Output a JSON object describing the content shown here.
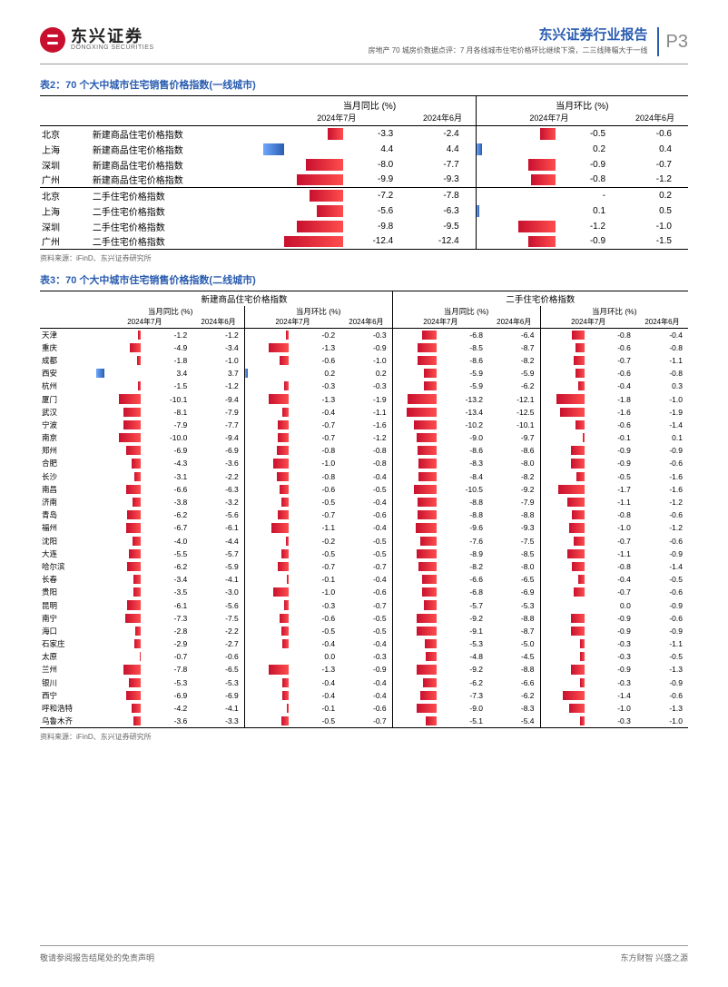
{
  "header": {
    "logo_cn": "东兴证券",
    "logo_en": "DONGXING SECURITIES",
    "title": "东兴证券行业报告",
    "subtitle": "房地产 70 城房价数据点评：7 月各线城市住宅价格环比继续下滑，二三线降幅大于一线",
    "page": "P3"
  },
  "colors": {
    "neg_bar_from": "#ff4d4d",
    "neg_bar_to": "#c8102e",
    "pos_bar_from": "#6ea8ff",
    "pos_bar_to": "#2a5db0",
    "title_blue": "#2a5db0",
    "rule": "#999999"
  },
  "table2": {
    "title": "表2：70 个大中城市住宅销售价格指数(一线城市)",
    "group_headers": [
      "当月同比 (%)",
      "当月环比 (%)"
    ],
    "sub_headers": [
      "2024年7月",
      "2024年6月",
      "2024年7月",
      "2024年6月"
    ],
    "bar_scale_yoy": 13.0,
    "bar_scale_mom": 2.0,
    "rows": [
      {
        "city": "北京",
        "metric": "新建商品住宅价格指数",
        "yoy7": -3.3,
        "yoy6": -2.4,
        "mom7": -0.5,
        "mom6": -0.6
      },
      {
        "city": "上海",
        "metric": "新建商品住宅价格指数",
        "yoy7": 4.4,
        "yoy6": 4.4,
        "mom7": 0.2,
        "mom6": 0.4
      },
      {
        "city": "深圳",
        "metric": "新建商品住宅价格指数",
        "yoy7": -8.0,
        "yoy6": -7.7,
        "mom7": -0.9,
        "mom6": -0.7
      },
      {
        "city": "广州",
        "metric": "新建商品住宅价格指数",
        "yoy7": -9.9,
        "yoy6": -9.3,
        "mom7": -0.8,
        "mom6": -1.2
      },
      {
        "city": "北京",
        "metric": "二手住宅价格指数",
        "yoy7": -7.2,
        "yoy6": -7.8,
        "mom7": null,
        "mom7_disp": "-",
        "mom6": 0.2,
        "sep": true
      },
      {
        "city": "上海",
        "metric": "二手住宅价格指数",
        "yoy7": -5.6,
        "yoy6": -6.3,
        "mom7": 0.1,
        "mom6": 0.5
      },
      {
        "city": "深圳",
        "metric": "二手住宅价格指数",
        "yoy7": -9.8,
        "yoy6": -9.5,
        "mom7": -1.2,
        "mom6": -1.0
      },
      {
        "city": "广州",
        "metric": "二手住宅价格指数",
        "yoy7": -12.4,
        "yoy6": -12.4,
        "mom7": -0.9,
        "mom6": -1.5
      }
    ],
    "source": "资料来源：iFinD、东兴证券研究所"
  },
  "table3": {
    "title": "表3：70 个大中城市住宅销售价格指数(二线城市)",
    "panel_headers": [
      "新建商品住宅价格指数",
      "二手住宅价格指数"
    ],
    "group_headers": [
      "当月同比 (%)",
      "当月环比 (%)",
      "当月同比 (%)",
      "当月环比 (%)"
    ],
    "sub_headers": [
      "2024年7月",
      "2024年6月",
      "2024年7月",
      "2024年6月",
      "2024年7月",
      "2024年6月",
      "2024年7月",
      "2024年6月"
    ],
    "bar_scale_yoy": 14.0,
    "bar_scale_mom": 2.0,
    "rows": [
      {
        "city": "天津",
        "n_yoy7": -1.2,
        "n_yoy6": -1.2,
        "n_mom7": -0.2,
        "n_mom6": -0.3,
        "s_yoy7": -6.8,
        "s_yoy6": -6.4,
        "s_mom7": -0.8,
        "s_mom6": -0.4
      },
      {
        "city": "重庆",
        "n_yoy7": -4.9,
        "n_yoy6": -3.4,
        "n_mom7": -1.3,
        "n_mom6": -0.9,
        "s_yoy7": -8.5,
        "s_yoy6": -8.7,
        "s_mom7": -0.6,
        "s_mom6": -0.8
      },
      {
        "city": "成都",
        "n_yoy7": -1.8,
        "n_yoy6": -1.0,
        "n_mom7": -0.6,
        "n_mom6": -1.0,
        "s_yoy7": -8.6,
        "s_yoy6": -8.2,
        "s_mom7": -0.7,
        "s_mom6": -1.1
      },
      {
        "city": "西安",
        "n_yoy7": 3.4,
        "n_yoy6": 3.7,
        "n_mom7": 0.2,
        "n_mom6": 0.2,
        "s_yoy7": -5.9,
        "s_yoy6": -5.9,
        "s_mom7": -0.6,
        "s_mom6": -0.8
      },
      {
        "city": "杭州",
        "n_yoy7": -1.5,
        "n_yoy6": -1.2,
        "n_mom7": -0.3,
        "n_mom6": -0.3,
        "s_yoy7": -5.9,
        "s_yoy6": -6.2,
        "s_mom7": -0.4,
        "s_mom6": 0.3
      },
      {
        "city": "厦门",
        "n_yoy7": -10.1,
        "n_yoy6": -9.4,
        "n_mom7": -1.3,
        "n_mom6": -1.9,
        "s_yoy7": -13.2,
        "s_yoy6": -12.1,
        "s_mom7": -1.8,
        "s_mom6": -1.0
      },
      {
        "city": "武汉",
        "n_yoy7": -8.1,
        "n_yoy6": -7.9,
        "n_mom7": -0.4,
        "n_mom6": -1.1,
        "s_yoy7": -13.4,
        "s_yoy6": -12.5,
        "s_mom7": -1.6,
        "s_mom6": -1.9
      },
      {
        "city": "宁波",
        "n_yoy7": -7.9,
        "n_yoy6": -7.7,
        "n_mom7": -0.7,
        "n_mom6": -1.6,
        "s_yoy7": -10.2,
        "s_yoy6": -10.1,
        "s_mom7": -0.6,
        "s_mom6": -1.4
      },
      {
        "city": "南京",
        "n_yoy7": -10.0,
        "n_yoy6": -9.4,
        "n_mom7": -0.7,
        "n_mom6": -1.2,
        "s_yoy7": -9.0,
        "s_yoy6": -9.7,
        "s_mom7": -0.1,
        "s_mom6": 0.1
      },
      {
        "city": "郑州",
        "n_yoy7": -6.9,
        "n_yoy6": -6.9,
        "n_mom7": -0.8,
        "n_mom6": -0.8,
        "s_yoy7": -8.6,
        "s_yoy6": -8.6,
        "s_mom7": -0.9,
        "s_mom6": -0.9
      },
      {
        "city": "合肥",
        "n_yoy7": -4.3,
        "n_yoy6": -3.6,
        "n_mom7": -1.0,
        "n_mom6": -0.8,
        "s_yoy7": -8.3,
        "s_yoy6": -8.0,
        "s_mom7": -0.9,
        "s_mom6": -0.6
      },
      {
        "city": "长沙",
        "n_yoy7": -3.1,
        "n_yoy6": -2.2,
        "n_mom7": -0.8,
        "n_mom6": -0.4,
        "s_yoy7": -8.4,
        "s_yoy6": -8.2,
        "s_mom7": -0.5,
        "s_mom6": -1.6
      },
      {
        "city": "南昌",
        "n_yoy7": -6.6,
        "n_yoy6": -6.3,
        "n_mom7": -0.6,
        "n_mom6": -0.5,
        "s_yoy7": -10.5,
        "s_yoy6": -9.2,
        "s_mom7": -1.7,
        "s_mom6": -1.6
      },
      {
        "city": "济南",
        "n_yoy7": -3.8,
        "n_yoy6": -3.2,
        "n_mom7": -0.5,
        "n_mom6": -0.4,
        "s_yoy7": -8.8,
        "s_yoy6": -7.9,
        "s_mom7": -1.1,
        "s_mom6": -1.2
      },
      {
        "city": "青岛",
        "n_yoy7": -6.2,
        "n_yoy6": -5.6,
        "n_mom7": -0.7,
        "n_mom6": -0.6,
        "s_yoy7": -8.8,
        "s_yoy6": -8.8,
        "s_mom7": -0.8,
        "s_mom6": -0.6
      },
      {
        "city": "福州",
        "n_yoy7": -6.7,
        "n_yoy6": -6.1,
        "n_mom7": -1.1,
        "n_mom6": -0.4,
        "s_yoy7": -9.6,
        "s_yoy6": -9.3,
        "s_mom7": -1.0,
        "s_mom6": -1.2
      },
      {
        "city": "沈阳",
        "n_yoy7": -4.0,
        "n_yoy6": -4.4,
        "n_mom7": -0.2,
        "n_mom6": -0.5,
        "s_yoy7": -7.6,
        "s_yoy6": -7.5,
        "s_mom7": -0.7,
        "s_mom6": -0.6
      },
      {
        "city": "大连",
        "n_yoy7": -5.5,
        "n_yoy6": -5.7,
        "n_mom7": -0.5,
        "n_mom6": -0.5,
        "s_yoy7": -8.9,
        "s_yoy6": -8.5,
        "s_mom7": -1.1,
        "s_mom6": -0.9
      },
      {
        "city": "哈尔滨",
        "n_yoy7": -6.2,
        "n_yoy6": -5.9,
        "n_mom7": -0.7,
        "n_mom6": -0.7,
        "s_yoy7": -8.2,
        "s_yoy6": -8.0,
        "s_mom7": -0.8,
        "s_mom6": -1.4
      },
      {
        "city": "长春",
        "n_yoy7": -3.4,
        "n_yoy6": -4.1,
        "n_mom7": -0.1,
        "n_mom6": -0.4,
        "s_yoy7": -6.6,
        "s_yoy6": -6.5,
        "s_mom7": -0.4,
        "s_mom6": -0.5
      },
      {
        "city": "贵阳",
        "n_yoy7": -3.5,
        "n_yoy6": -3.0,
        "n_mom7": -1.0,
        "n_mom6": -0.6,
        "s_yoy7": -6.8,
        "s_yoy6": -6.9,
        "s_mom7": -0.7,
        "s_mom6": -0.6
      },
      {
        "city": "昆明",
        "n_yoy7": -6.1,
        "n_yoy6": -5.6,
        "n_mom7": -0.3,
        "n_mom6": -0.7,
        "s_yoy7": -5.7,
        "s_yoy6": -5.3,
        "s_mom7": 0.0,
        "s_mom6": -0.9
      },
      {
        "city": "南宁",
        "n_yoy7": -7.3,
        "n_yoy6": -7.5,
        "n_mom7": -0.6,
        "n_mom6": -0.5,
        "s_yoy7": -9.2,
        "s_yoy6": -8.8,
        "s_mom7": -0.9,
        "s_mom6": -0.6
      },
      {
        "city": "海口",
        "n_yoy7": -2.8,
        "n_yoy6": -2.2,
        "n_mom7": -0.5,
        "n_mom6": -0.5,
        "s_yoy7": -9.1,
        "s_yoy6": -8.7,
        "s_mom7": -0.9,
        "s_mom6": -0.9
      },
      {
        "city": "石家庄",
        "n_yoy7": -2.9,
        "n_yoy6": -2.7,
        "n_mom7": -0.4,
        "n_mom6": -0.4,
        "s_yoy7": -5.3,
        "s_yoy6": -5.0,
        "s_mom7": -0.3,
        "s_mom6": -1.1
      },
      {
        "city": "太原",
        "n_yoy7": -0.7,
        "n_yoy6": -0.6,
        "n_mom7": 0.0,
        "n_mom6": -0.3,
        "s_yoy7": -4.8,
        "s_yoy6": -4.5,
        "s_mom7": -0.3,
        "s_mom6": -0.5
      },
      {
        "city": "兰州",
        "n_yoy7": -7.8,
        "n_yoy6": -6.5,
        "n_mom7": -1.3,
        "n_mom6": -0.9,
        "s_yoy7": -9.2,
        "s_yoy6": -8.8,
        "s_mom7": -0.9,
        "s_mom6": -1.3
      },
      {
        "city": "银川",
        "n_yoy7": -5.3,
        "n_yoy6": -5.3,
        "n_mom7": -0.4,
        "n_mom6": -0.4,
        "s_yoy7": -6.2,
        "s_yoy6": -6.6,
        "s_mom7": -0.3,
        "s_mom6": -0.9
      },
      {
        "city": "西宁",
        "n_yoy7": -6.9,
        "n_yoy6": -6.9,
        "n_mom7": -0.4,
        "n_mom6": -0.4,
        "s_yoy7": -7.3,
        "s_yoy6": -6.2,
        "s_mom7": -1.4,
        "s_mom6": -0.6
      },
      {
        "city": "呼和浩特",
        "n_yoy7": -4.2,
        "n_yoy6": -4.1,
        "n_mom7": -0.1,
        "n_mom6": -0.6,
        "s_yoy7": -9.0,
        "s_yoy6": -8.3,
        "s_mom7": -1.0,
        "s_mom6": -1.3
      },
      {
        "city": "乌鲁木齐",
        "n_yoy7": -3.6,
        "n_yoy6": -3.3,
        "n_mom7": -0.5,
        "n_mom6": -0.7,
        "s_yoy7": -5.1,
        "s_yoy6": -5.4,
        "s_mom7": -0.3,
        "s_mom6": -1.0
      }
    ],
    "source": "资料来源：iFinD、东兴证券研究所"
  },
  "footer": {
    "left": "敬请参阅报告结尾处的免责声明",
    "right": "东方财智 兴盛之源"
  }
}
